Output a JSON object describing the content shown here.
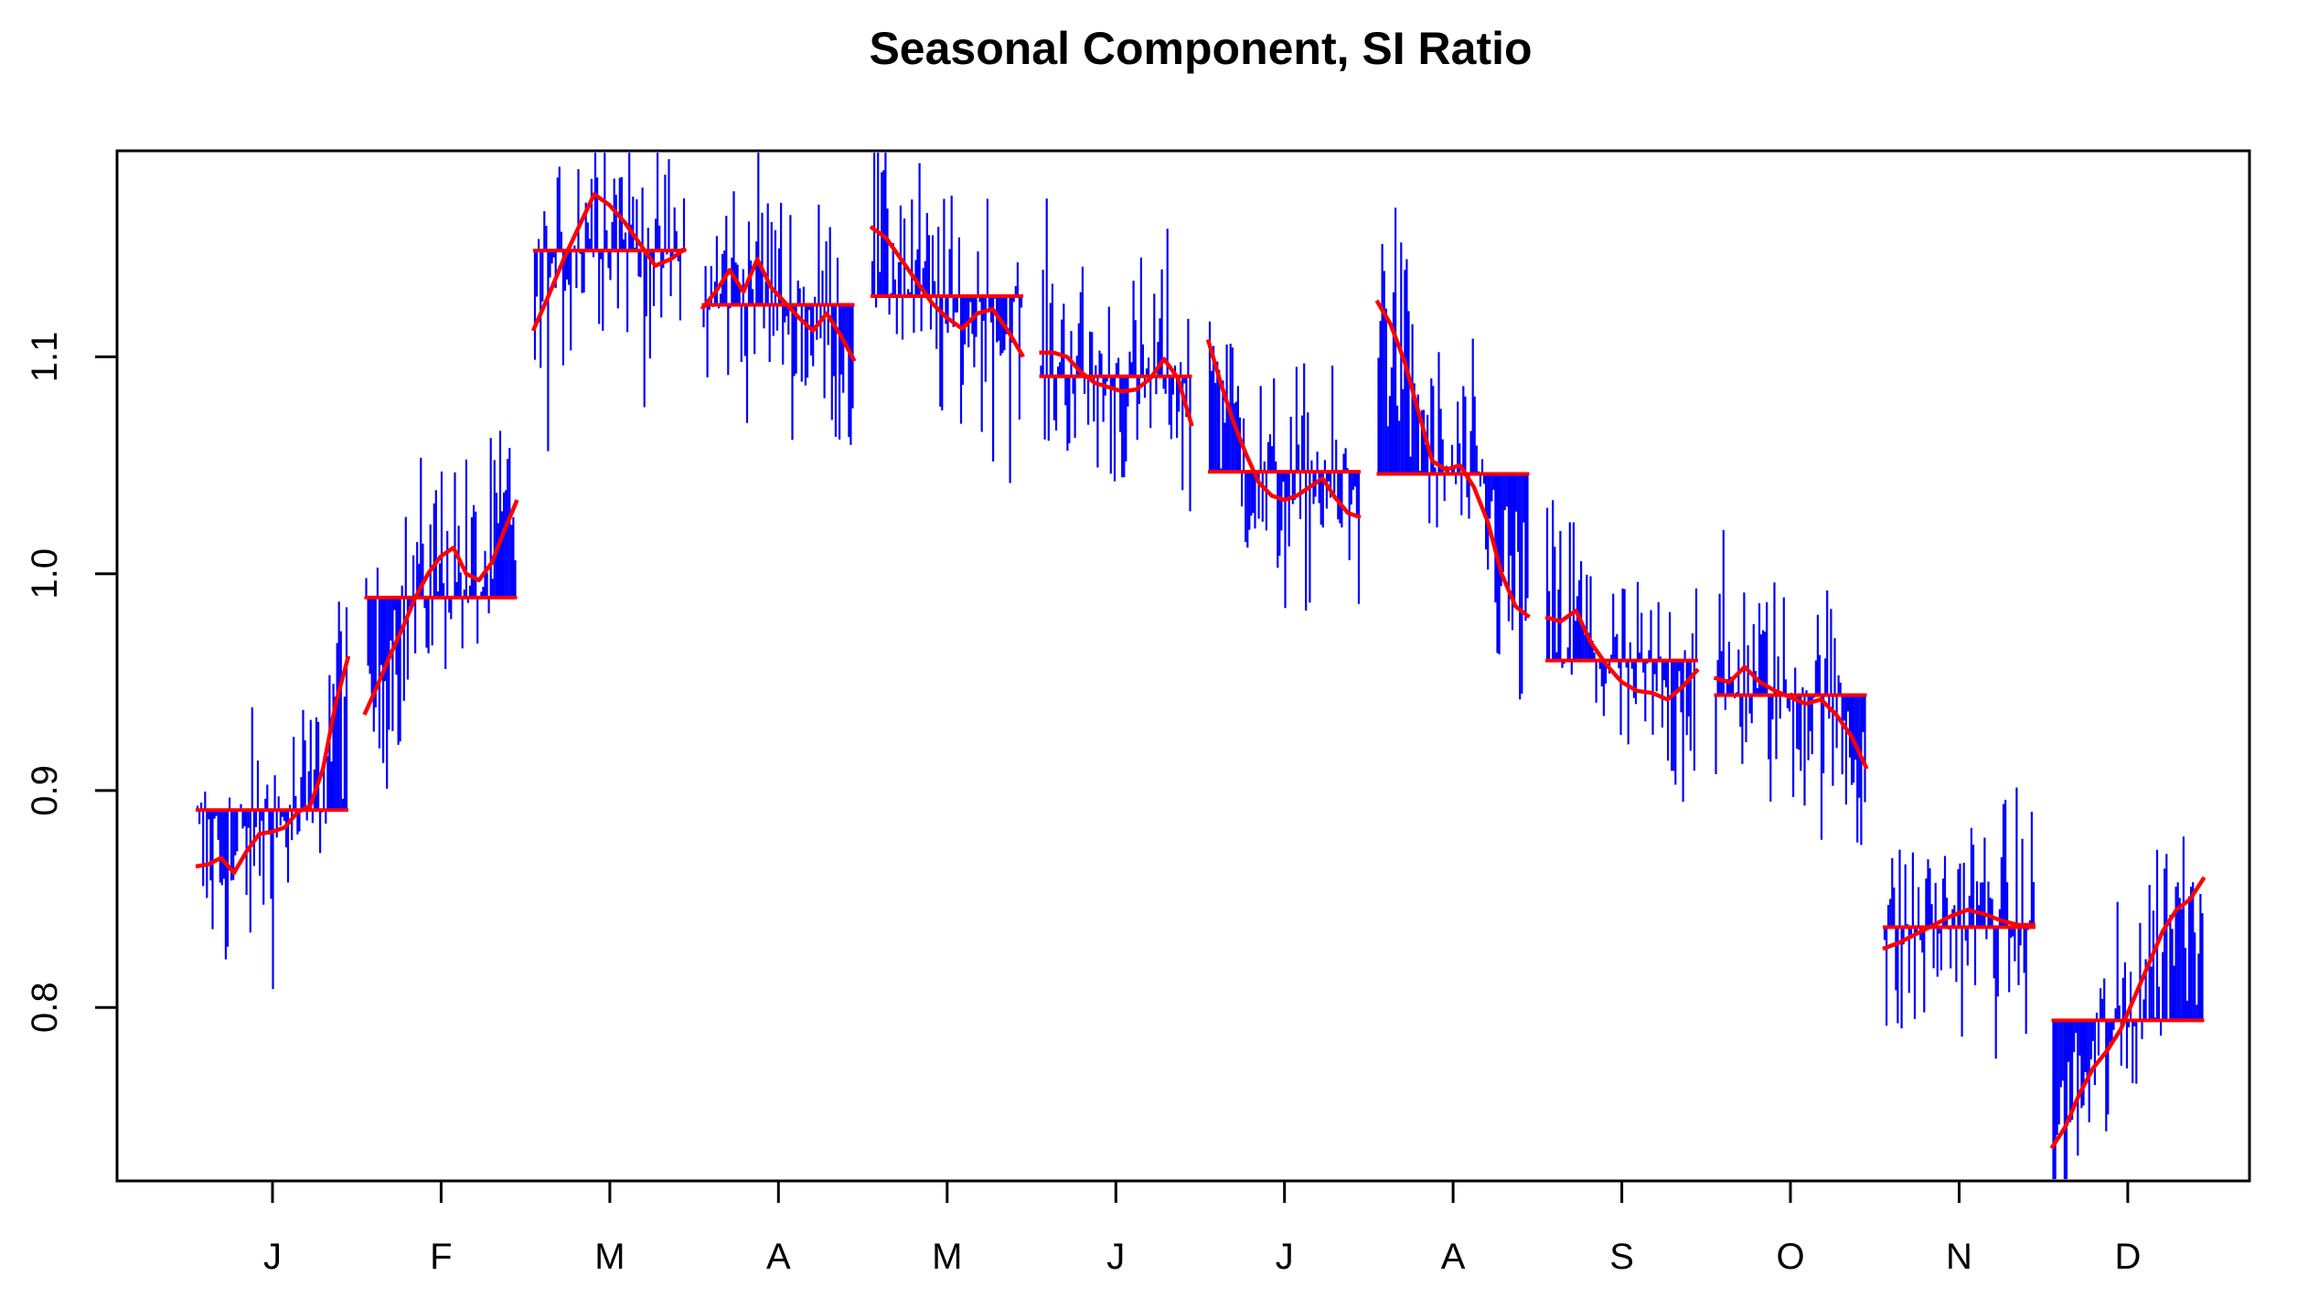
{
  "chart_data": {
    "type": "line",
    "title": "Seasonal Component, SI Ratio",
    "xlabel": "",
    "ylabel": "",
    "ylim": [
      0.72,
      1.195
    ],
    "y_ticks": [
      "0.8",
      "0.9",
      "1.0",
      "1.1"
    ],
    "y_tick_values": [
      0.8,
      0.9,
      1.0,
      1.1
    ],
    "x_tick_labels": [
      "J",
      "F",
      "M",
      "A",
      "M",
      "J",
      "J",
      "A",
      "S",
      "O",
      "N",
      "D"
    ],
    "grid": false,
    "legend": "none",
    "colors": {
      "si_ratio": "#0000ff",
      "seasonal_factor": "#ff0000"
    },
    "months": [
      {
        "label": "J",
        "mean": 0.891,
        "seasonal": [
          0.865,
          0.866,
          0.869,
          0.862,
          0.872,
          0.88,
          0.881,
          0.883,
          0.89,
          0.893,
          0.91,
          0.94,
          0.962
        ]
      },
      {
        "label": "F",
        "mean": 0.989,
        "seasonal": [
          0.935,
          0.948,
          0.962,
          0.975,
          0.989,
          1.0,
          1.008,
          1.012,
          1.0,
          0.997,
          1.005,
          1.02,
          1.034
        ]
      },
      {
        "label": "M",
        "mean": 1.149,
        "seasonal": [
          1.112,
          1.128,
          1.145,
          1.16,
          1.175,
          1.17,
          1.162,
          1.152,
          1.142,
          1.145,
          1.15
        ]
      },
      {
        "label": "A",
        "mean": 1.124,
        "seasonal": [
          1.122,
          1.13,
          1.14,
          1.13,
          1.145,
          1.132,
          1.125,
          1.118,
          1.112,
          1.12,
          1.11,
          1.098
        ]
      },
      {
        "label": "M",
        "mean": 1.128,
        "seasonal": [
          1.16,
          1.155,
          1.145,
          1.135,
          1.125,
          1.118,
          1.113,
          1.12,
          1.122,
          1.112,
          1.1
        ]
      },
      {
        "label": "J",
        "mean": 1.091,
        "seasonal": [
          1.102,
          1.102,
          1.1,
          1.093,
          1.088,
          1.086,
          1.084,
          1.085,
          1.09,
          1.099,
          1.09,
          1.068
        ]
      },
      {
        "label": "J",
        "mean": 1.047,
        "seasonal": [
          1.108,
          1.088,
          1.07,
          1.055,
          1.042,
          1.036,
          1.034,
          1.036,
          1.04,
          1.044,
          1.035,
          1.028,
          1.026
        ]
      },
      {
        "label": "A",
        "mean": 1.046,
        "seasonal": [
          1.126,
          1.115,
          1.098,
          1.075,
          1.052,
          1.048,
          1.05,
          1.04,
          1.024,
          1.0,
          0.985,
          0.98
        ]
      },
      {
        "label": "S",
        "mean": 0.96,
        "seasonal": [
          0.98,
          0.978,
          0.983,
          0.968,
          0.958,
          0.95,
          0.946,
          0.945,
          0.942,
          0.948,
          0.956
        ]
      },
      {
        "label": "O",
        "mean": 0.944,
        "seasonal": [
          0.952,
          0.95,
          0.957,
          0.95,
          0.946,
          0.943,
          0.94,
          0.942,
          0.935,
          0.925,
          0.91
        ]
      },
      {
        "label": "N",
        "mean": 0.837,
        "seasonal": [
          0.827,
          0.83,
          0.834,
          0.838,
          0.842,
          0.845,
          0.843,
          0.84,
          0.838,
          0.838
        ]
      },
      {
        "label": "D",
        "mean": 0.794,
        "seasonal": [
          0.735,
          0.745,
          0.76,
          0.772,
          0.78,
          0.79,
          0.805,
          0.82,
          0.835,
          0.845,
          0.85,
          0.86
        ]
      }
    ]
  }
}
